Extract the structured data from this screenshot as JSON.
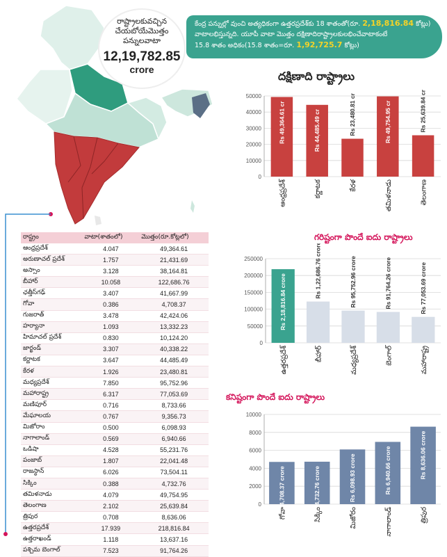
{
  "bubble": {
    "line1": "రాష్ట్రాలకువచ్చిన",
    "line2": "చేయబోయేమొత్తం",
    "line3": "పన్నులవాటా",
    "amount": "12,19,782.85",
    "unit": "crore"
  },
  "banner": {
    "line1_prefix": "కేంద్ర పన్నుల్లో వుంచి అత్యధికంగా ఉత్తరప్రదేశ్‌కు 18 శాతంతో(రూ. ",
    "line1_value": "2,18,816.84",
    "line1_suffix": " కోట్లు)",
    "line2": "వాటాలభిస్తున్నది. యూపీ వాటా మొత్తం దక్షిణాదిరాష్ట్రాలకులభించేవాటాకంటే",
    "line3_prefix": "15.8 శాతం అధికం(15.8 శాతం=రూ. ",
    "line3_value": "1,92,725.7",
    "line3_suffix": " కోట్లు)"
  },
  "table": {
    "headers": [
      "రాష్ట్రం",
      "వాటా(శాతంలో)",
      "మొత్తం(రూ.కోట్లలో)"
    ],
    "rows": [
      [
        "ఆంధ్రప్రదేశ్",
        "4.047",
        "49,364.61"
      ],
      [
        "అరుణాచల్ ప్రదేశ్",
        "1.757",
        "21,431.69"
      ],
      [
        "అస్సాం",
        "3.128",
        "38,164.81"
      ],
      [
        "బీహార్",
        "10.058",
        "122,686.76"
      ],
      [
        "ఛత్తీస్‌గఢ్",
        "3.407",
        "41,667.99"
      ],
      [
        "గోవా",
        "0.386",
        "4,708.37"
      ],
      [
        "గుజరాత్",
        "3.478",
        "42,424.06"
      ],
      [
        "హర్యానా",
        "1.093",
        "13,332.23"
      ],
      [
        "హిమాచల్ ప్రదేశ్",
        "0.830",
        "10,124.20"
      ],
      [
        "జార్ఖండ్",
        "3.307",
        "40,338.22"
      ],
      [
        "కర్ణాటక",
        "3.647",
        "44,485.49"
      ],
      [
        "కేరళ",
        "1.926",
        "23,480.81"
      ],
      [
        "మధ్యప్రదేశ్",
        "7.850",
        "95,752.96"
      ],
      [
        "మహారాష్ట్ర",
        "6.317",
        "77,053.69"
      ],
      [
        "మణిపూర్",
        "0.716",
        "8,733.66"
      ],
      [
        "మేఘాలయ",
        "0.767",
        "9,356.73"
      ],
      [
        "మిజోరాం",
        "0.500",
        "6,098.93"
      ],
      [
        "నాగాలాండ్",
        "0.569",
        "6,940.66"
      ],
      [
        "ఒడిషా",
        "4.528",
        "55,231.76"
      ],
      [
        "పంజాబ్",
        "1.807",
        "22,041.48"
      ],
      [
        "రాజస్థాన్",
        "6.026",
        "73,504.11"
      ],
      [
        "సిక్కిం",
        "0.388",
        "4,732.76"
      ],
      [
        "తమిళనాడు",
        "4.079",
        "49,754.95"
      ],
      [
        "తెలంగాణ",
        "2.102",
        "25,639.84"
      ],
      [
        "త్రిపుర",
        "0.708",
        "8,636.06"
      ],
      [
        "ఉత్తరప్రదేశ్",
        "17.939",
        "218,816.84"
      ],
      [
        "ఉత్తరాఖండ్",
        "1.118",
        "13,637.16"
      ],
      [
        "పశ్చిమ బెంగాల్",
        "7.523",
        "91,764.26"
      ]
    ]
  },
  "colors": {
    "teal": "#3aa38f",
    "red": "#c8413f",
    "slate": "#6f86a8",
    "pink_title": "#d4145a",
    "highlight": "#f5d327",
    "map_south": "#c23b3c",
    "map_up": "#2f9c7e"
  },
  "chart_data": [
    {
      "type": "bar",
      "title": "దక్షిణాది రాష్ట్రాలు",
      "categories": [
        "ఆంధ్రప్రదేశ్",
        "కర్ణాటక",
        "కేరళ",
        "తమిళనాడు",
        "తెలంగాణ"
      ],
      "values": [
        49364.61,
        44485.49,
        23480.81,
        49754.95,
        25639.84
      ],
      "labels": [
        "Rs 49,364.61 cr",
        "Rs 44,485.49 cr",
        "Rs 23,480.81 cr",
        "Rs 49,754.95 cr",
        "Rs 25,639.84 cr"
      ],
      "label_inside": [
        true,
        true,
        false,
        true,
        false
      ],
      "ylim": [
        0,
        50000
      ],
      "yticks": [
        "0",
        "10000",
        "20000",
        "30000",
        "40000",
        "50000"
      ],
      "grid": true,
      "colors": [
        "#c8413f",
        "#c8413f",
        "#c8413f",
        "#c8413f",
        "#c8413f"
      ]
    },
    {
      "type": "bar",
      "title": "గరిష్టంగా పొందే ఐదు రాష్ట్రాలు",
      "categories": [
        "ఉత్తరప్రదేశ్",
        "బీహార్",
        "మధ్యప్రదేశ్",
        "బెంగాల్",
        "మహారాష్ట్ర"
      ],
      "values": [
        218816.84,
        122686.76,
        95752.96,
        91764.26,
        77053.69
      ],
      "labels": [
        "Rs 2,18,816.84 crore",
        "Rs 1,22,686.76 crore",
        "Rs 95,752.96 crore",
        "Rs 91,764.26 crore",
        "Rs 77,053.69 crore"
      ],
      "label_inside": [
        true,
        false,
        false,
        false,
        false
      ],
      "ylim": [
        0,
        250000
      ],
      "yticks": [
        "0",
        "50000",
        "100000",
        "150000",
        "200000",
        "250000"
      ],
      "grid": true,
      "colors": [
        "#3aa38f",
        "#d7dee8",
        "#d7dee8",
        "#d7dee8",
        "#d7dee8"
      ]
    },
    {
      "type": "bar",
      "title": "కనిష్టంగా పొందే ఐదు రాష్ట్రాలు",
      "categories": [
        "గోవా",
        "సిక్కిం",
        "మిజోరం",
        "నాగాలాండ్",
        "త్రిపుర"
      ],
      "values": [
        4708.37,
        4732.76,
        6098.93,
        6940.66,
        8636.06
      ],
      "labels": [
        "Rs 4,708.37 crore",
        "Rs 4,732.76 crore",
        "Rs 6,098.93 crore",
        "Rs 6,940.66 crore",
        "Rs 8,636.06 crore"
      ],
      "label_inside": [
        true,
        true,
        true,
        true,
        true
      ],
      "ylim": [
        0,
        10000
      ],
      "yticks": [
        "0",
        "2000",
        "4000",
        "6000",
        "8000",
        "10000"
      ],
      "grid": true,
      "colors": [
        "#6f86a8",
        "#6f86a8",
        "#6f86a8",
        "#6f86a8",
        "#6f86a8"
      ]
    }
  ]
}
